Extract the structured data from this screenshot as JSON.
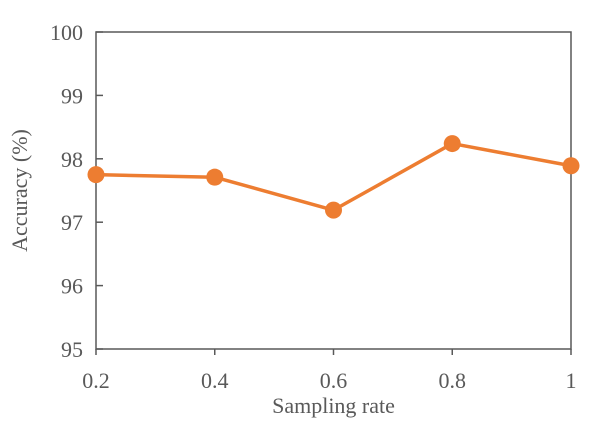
{
  "chart_data": {
    "type": "line",
    "title": "",
    "xlabel": "Sampling rate",
    "ylabel": "Accuracy (%)",
    "x": [
      0.2,
      0.4,
      0.6,
      0.8,
      1
    ],
    "x_tick_labels": [
      "0.2",
      "0.4",
      "0.6",
      "0.8",
      "1"
    ],
    "xlim": [
      0.2,
      1
    ],
    "ylim": [
      95,
      100
    ],
    "y_ticks": [
      95,
      96,
      97,
      98,
      99,
      100
    ],
    "y_tick_labels": [
      "95",
      "96",
      "97",
      "98",
      "99",
      "100"
    ],
    "series": [
      {
        "values": [
          97.75,
          97.71,
          97.19,
          98.24,
          97.89
        ],
        "color": "#ED7D31"
      }
    ],
    "grid": false,
    "legend": "none",
    "marker": "circle"
  }
}
